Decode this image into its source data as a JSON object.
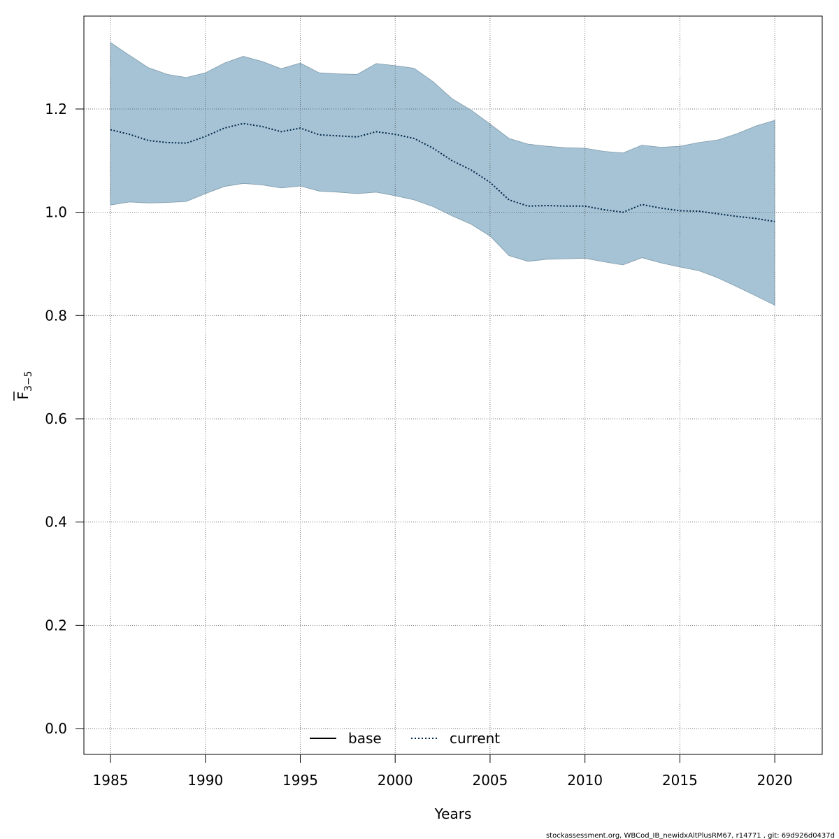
{
  "chart_data": {
    "type": "area",
    "xlabel": "Years",
    "ylabel": {
      "main": "F",
      "sub": "3−5"
    },
    "xlim": [
      1983.6,
      2022.5
    ],
    "ylim": [
      -0.05,
      1.38
    ],
    "xticks": [
      1985,
      1990,
      1995,
      2000,
      2005,
      2010,
      2015,
      2020
    ],
    "yticks": [
      0.0,
      0.2,
      0.4,
      0.6,
      0.8,
      1.0,
      1.2
    ],
    "ytick_labels": [
      "0.0",
      "0.2",
      "0.4",
      "0.6",
      "0.8",
      "1.0",
      "1.2"
    ],
    "grid": true,
    "legend": {
      "position": "bottom-center",
      "entries": [
        "base",
        "current"
      ]
    },
    "band_color": "#a5c3d4",
    "band_edge_color": "#7f9aab",
    "x": [
      1985,
      1986,
      1987,
      1988,
      1989,
      1990,
      1991,
      1992,
      1993,
      1994,
      1995,
      1996,
      1997,
      1998,
      1999,
      2000,
      2001,
      2002,
      2003,
      2004,
      2005,
      2006,
      2007,
      2008,
      2009,
      2010,
      2011,
      2012,
      2013,
      2014,
      2015,
      2016,
      2017,
      2018,
      2019,
      2020
    ],
    "series": [
      {
        "name": "current",
        "style": "dotted",
        "color": "#00254a",
        "values": [
          1.16,
          1.151,
          1.139,
          1.135,
          1.134,
          1.147,
          1.163,
          1.172,
          1.166,
          1.156,
          1.163,
          1.15,
          1.148,
          1.146,
          1.156,
          1.151,
          1.143,
          1.124,
          1.1,
          1.082,
          1.058,
          1.024,
          1.012,
          1.013,
          1.012,
          1.012,
          1.005,
          1.0,
          1.015,
          1.008,
          1.003,
          1.002,
          0.997,
          0.992,
          0.988,
          0.982
        ]
      }
    ],
    "band": {
      "upper": [
        1.329,
        1.304,
        1.28,
        1.267,
        1.261,
        1.27,
        1.289,
        1.302,
        1.292,
        1.278,
        1.289,
        1.27,
        1.268,
        1.267,
        1.288,
        1.284,
        1.279,
        1.253,
        1.22,
        1.198,
        1.171,
        1.143,
        1.132,
        1.128,
        1.125,
        1.124,
        1.118,
        1.115,
        1.13,
        1.126,
        1.128,
        1.135,
        1.14,
        1.152,
        1.167,
        1.178
      ],
      "lower": [
        1.014,
        1.02,
        1.018,
        1.019,
        1.021,
        1.036,
        1.05,
        1.056,
        1.053,
        1.047,
        1.051,
        1.041,
        1.039,
        1.036,
        1.039,
        1.032,
        1.024,
        1.011,
        0.993,
        0.977,
        0.954,
        0.916,
        0.905,
        0.909,
        0.91,
        0.911,
        0.904,
        0.898,
        0.912,
        0.902,
        0.894,
        0.887,
        0.873,
        0.856,
        0.838,
        0.82
      ]
    }
  },
  "footer": "stockassessment.org, WBCod_IB_newidxAltPlusRM67, r14771 , git: 69d926d0437d"
}
